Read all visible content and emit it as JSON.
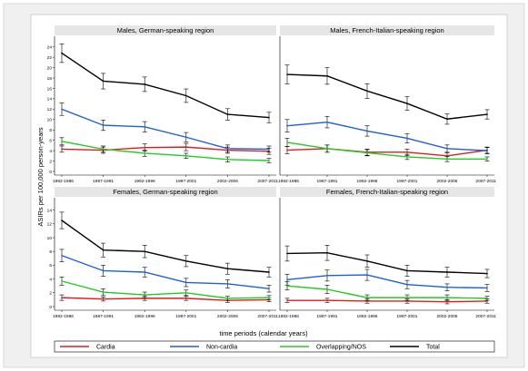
{
  "figure": {
    "ylabel": "ASIRs per 100,000 person-years",
    "xlabel": "time periods (calendar years)"
  },
  "legend": {
    "items": [
      {
        "label": "Cardia",
        "color": "#e31a1c"
      },
      {
        "label": "Non-cardia",
        "color": "#1f5fd6"
      },
      {
        "label": "Overlapping/NOS",
        "color": "#22cc22"
      },
      {
        "label": "Total",
        "color": "#000000"
      }
    ]
  },
  "chart_data": [
    {
      "type": "line",
      "title": "Males, German-speaking region",
      "categories": [
        "1982-1986",
        "1987-1991",
        "1992-1996",
        "1997-2001",
        "2002-2006",
        "2007-2011"
      ],
      "yticks": [
        0,
        2,
        4,
        6,
        8,
        10,
        12,
        14,
        16,
        18,
        20,
        22,
        24
      ],
      "ylim": [
        0,
        25
      ],
      "series": [
        {
          "name": "Cardia",
          "values": [
            4.3,
            4.1,
            4.6,
            4.7,
            4.1,
            3.9
          ],
          "err": [
            0.6,
            0.6,
            0.7,
            0.7,
            0.6,
            0.6
          ]
        },
        {
          "name": "Non-cardia",
          "values": [
            12.0,
            8.9,
            8.6,
            6.6,
            4.4,
            4.3
          ],
          "err": [
            1.2,
            1.0,
            1.0,
            0.9,
            0.7,
            0.6
          ]
        },
        {
          "name": "Overlapping/NOS",
          "values": [
            5.8,
            4.3,
            3.5,
            3.0,
            2.3,
            2.1
          ],
          "err": [
            0.7,
            0.6,
            0.6,
            0.5,
            0.5,
            0.4
          ]
        },
        {
          "name": "Total",
          "values": [
            22.8,
            17.4,
            16.8,
            14.6,
            11.0,
            10.4
          ],
          "err": [
            1.8,
            1.5,
            1.4,
            1.3,
            1.1,
            1.0
          ]
        }
      ]
    },
    {
      "type": "line",
      "title": "Males, French-Italian-speaking region",
      "categories": [
        "1982-1986",
        "1987-1991",
        "1992-1996",
        "1997-2001",
        "2002-2006",
        "2007-2011"
      ],
      "yticks": [],
      "ylim": [
        0,
        25
      ],
      "series": [
        {
          "name": "Cardia",
          "values": [
            4.1,
            4.4,
            3.7,
            3.7,
            3.0,
            4.1
          ],
          "err": [
            0.7,
            0.7,
            0.6,
            0.6,
            0.6,
            0.6
          ]
        },
        {
          "name": "Non-cardia",
          "values": [
            8.8,
            9.5,
            7.8,
            6.4,
            4.4,
            4.0
          ],
          "err": [
            1.2,
            1.1,
            1.0,
            0.9,
            0.7,
            0.6
          ]
        },
        {
          "name": "Overlapping/NOS",
          "values": [
            5.6,
            4.4,
            3.6,
            2.8,
            2.4,
            2.4
          ],
          "err": [
            0.8,
            0.7,
            0.6,
            0.5,
            0.5,
            0.4
          ]
        },
        {
          "name": "Total",
          "values": [
            18.7,
            18.4,
            15.5,
            13.1,
            10.1,
            11.0
          ],
          "err": [
            1.8,
            1.6,
            1.4,
            1.3,
            1.0,
            0.9
          ]
        }
      ]
    },
    {
      "type": "line",
      "title": "Females, German-speaking region",
      "categories": [
        "1982-1986",
        "1987-1991",
        "1992-1996",
        "1997-2001",
        "2002-2006",
        "2007-2011"
      ],
      "yticks": [
        0,
        2,
        4,
        6,
        8,
        10,
        12,
        14
      ],
      "ylim": [
        0,
        15
      ],
      "series": [
        {
          "name": "Cardia",
          "values": [
            1.3,
            1.1,
            1.2,
            1.2,
            0.9,
            1.0
          ],
          "err": [
            0.4,
            0.3,
            0.3,
            0.3,
            0.3,
            0.3
          ]
        },
        {
          "name": "Non-cardia",
          "values": [
            7.4,
            5.2,
            5.0,
            3.5,
            3.3,
            2.6
          ],
          "err": [
            0.9,
            0.8,
            0.7,
            0.6,
            0.6,
            0.5
          ]
        },
        {
          "name": "Overlapping/NOS",
          "values": [
            3.7,
            2.1,
            1.7,
            2.0,
            1.2,
            1.3
          ],
          "err": [
            0.6,
            0.5,
            0.4,
            0.4,
            0.3,
            0.3
          ]
        },
        {
          "name": "Total",
          "values": [
            12.5,
            8.2,
            8.0,
            6.6,
            5.5,
            5.0
          ],
          "err": [
            1.2,
            1.0,
            0.9,
            0.8,
            0.8,
            0.7
          ]
        }
      ]
    },
    {
      "type": "line",
      "title": "Females, French-Italian-speaking region",
      "categories": [
        "1982-1986",
        "1987-1991",
        "1992-1996",
        "1997-2001",
        "2002-2006",
        "2007-2011"
      ],
      "yticks": [],
      "ylim": [
        0,
        15
      ],
      "series": [
        {
          "name": "Cardia",
          "values": [
            0.9,
            0.9,
            0.8,
            0.8,
            0.7,
            0.8
          ],
          "err": [
            0.3,
            0.3,
            0.3,
            0.3,
            0.3,
            0.3
          ]
        },
        {
          "name": "Non-cardia",
          "values": [
            3.9,
            4.5,
            4.6,
            3.2,
            2.8,
            2.7
          ],
          "err": [
            0.8,
            0.8,
            0.8,
            0.6,
            0.5,
            0.5
          ]
        },
        {
          "name": "Overlapping/NOS",
          "values": [
            3.0,
            2.5,
            1.3,
            1.3,
            1.3,
            1.2
          ],
          "err": [
            0.6,
            0.6,
            0.4,
            0.4,
            0.4,
            0.3
          ]
        },
        {
          "name": "Total",
          "values": [
            7.7,
            7.8,
            6.6,
            5.2,
            5.0,
            4.8
          ],
          "err": [
            1.1,
            1.1,
            0.9,
            0.8,
            0.7,
            0.6
          ]
        }
      ]
    }
  ]
}
